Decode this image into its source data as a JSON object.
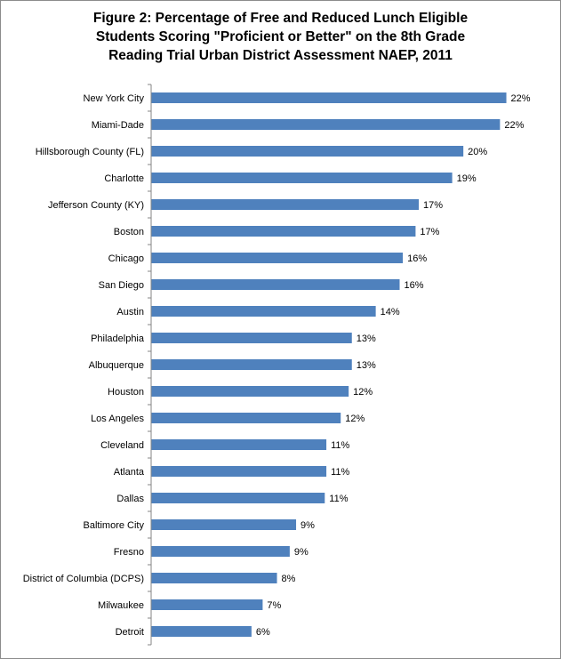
{
  "chart_data": {
    "type": "bar",
    "orientation": "horizontal",
    "title_lines": [
      "Figure 2: Percentage of Free and Reduced Lunch Eligible",
      "Students Scoring \"Proficient or Better\" on the 8th Grade",
      "Reading Trial Urban District Assessment NAEP, 2011"
    ],
    "categories": [
      "New York City",
      "Miami-Dade",
      "Hillsborough County (FL)",
      "Charlotte",
      "Jefferson County (KY)",
      "Boston",
      "Chicago",
      "San Diego",
      "Austin",
      "Philadelphia",
      "Albuquerque",
      "Houston",
      "Los Angeles",
      "Cleveland",
      "Atlanta",
      "Dallas",
      "Baltimore City",
      "Fresno",
      "District of Columbia (DCPS)",
      "Milwaukee",
      "Detroit"
    ],
    "values": [
      22.3,
      21.9,
      19.6,
      18.9,
      16.8,
      16.6,
      15.8,
      15.6,
      14.1,
      12.6,
      12.6,
      12.4,
      11.9,
      11.0,
      11.0,
      10.9,
      9.1,
      8.7,
      7.9,
      7.0,
      6.3
    ],
    "value_labels": [
      "22%",
      "22%",
      "20%",
      "19%",
      "17%",
      "17%",
      "16%",
      "16%",
      "14%",
      "13%",
      "13%",
      "12%",
      "12%",
      "11%",
      "11%",
      "11%",
      "9%",
      "9%",
      "8%",
      "7%",
      "6%"
    ],
    "series_color": "#4f81bd",
    "xlim": [
      0,
      24
    ],
    "xlabel": "",
    "ylabel": "",
    "grid": false,
    "legend": "none"
  }
}
